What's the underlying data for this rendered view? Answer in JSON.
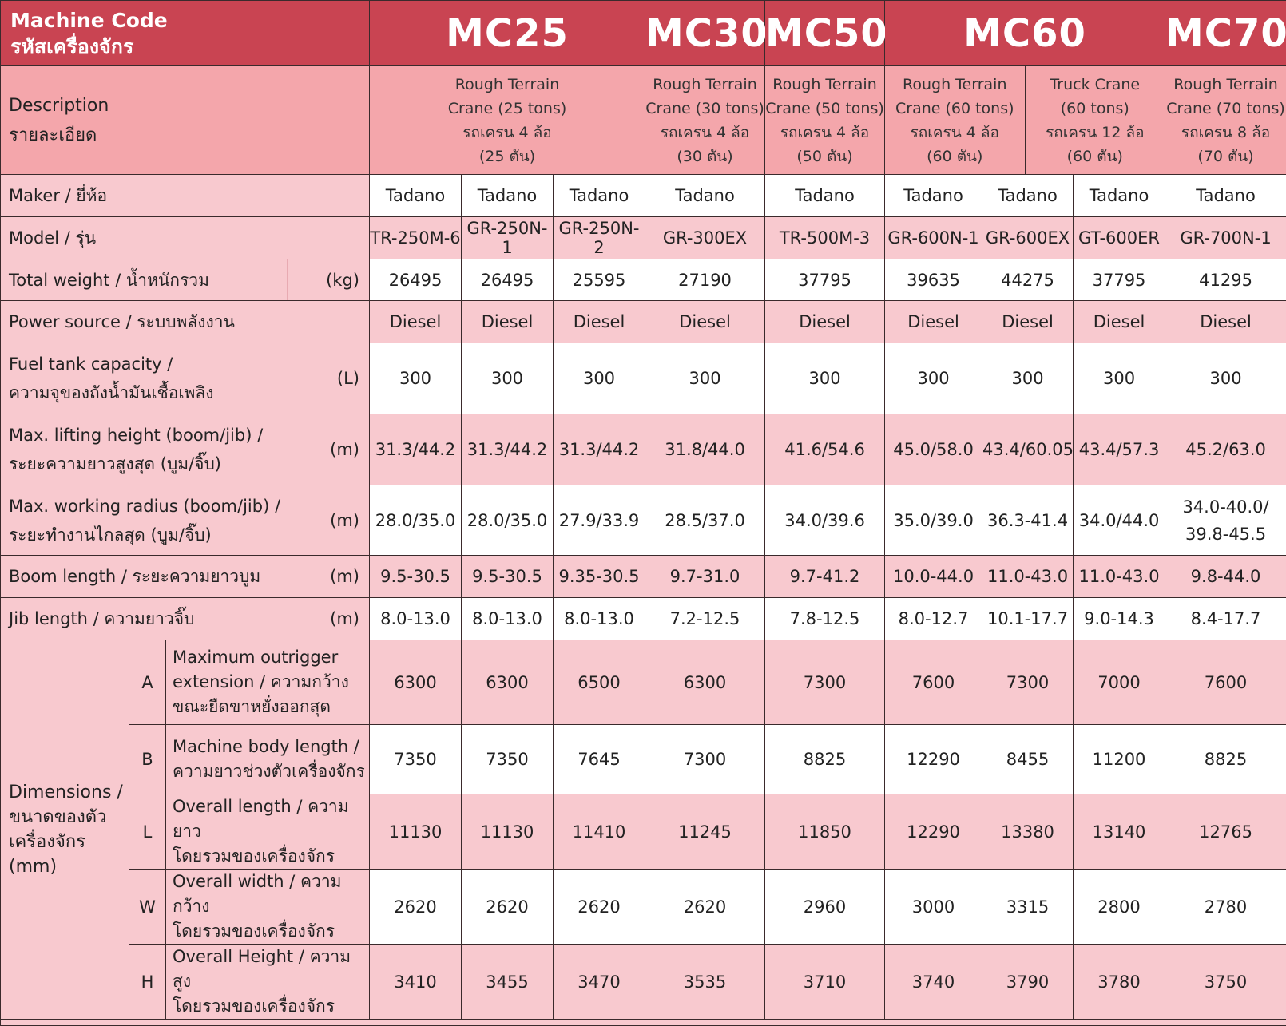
{
  "colors": {
    "header": "#c94452",
    "description": "#f4a6ab",
    "pink_row": "#f8c9cf",
    "white_row": "#ffffff"
  },
  "header": {
    "title_en": "Machine Code",
    "title_th": "รหัสเครื่องจักร",
    "codes": [
      {
        "code": "MC25",
        "span": 3
      },
      {
        "code": "MC30",
        "span": 1
      },
      {
        "code": "MC50",
        "span": 1
      },
      {
        "code": "MC60",
        "span": 3
      },
      {
        "code": "MC70",
        "span": 1
      }
    ]
  },
  "description": {
    "label_en": "Description",
    "label_th": "รายละเอียด",
    "items": [
      {
        "lines": [
          "Rough Terrain",
          "Crane (25 tons)",
          "รถเครน 4 ล้อ",
          "(25 ตัน)"
        ]
      },
      {
        "lines": [
          "Rough Terrain",
          "Crane (30 tons)",
          "รถเครน 4 ล้อ",
          "(30 ตัน)"
        ]
      },
      {
        "lines": [
          "Rough Terrain",
          "Crane (50 tons)",
          "รถเครน 4 ล้อ",
          "(50 ตัน)"
        ]
      },
      {
        "lines": [
          "Rough Terrain",
          "Crane (60 tons)",
          "รถเครน 4 ล้อ",
          "(60 ตัน)"
        ]
      },
      {
        "lines": [
          "Truck Crane",
          "(60 tons)",
          "รถเครน 12 ล้อ",
          "(60 ตัน)"
        ]
      },
      {
        "lines": [
          "Rough Terrain",
          "Crane (70 tons)",
          "รถเครน 8 ล้อ",
          "(70 ตัน)"
        ]
      }
    ]
  },
  "rows": [
    {
      "label": [
        "Maker / ยี่ห้อ"
      ],
      "unit": "",
      "shade": "white",
      "values": [
        "Tadano",
        "Tadano",
        "Tadano",
        "Tadano",
        "Tadano",
        "Tadano",
        "Tadano",
        "Tadano",
        "Tadano"
      ]
    },
    {
      "label": [
        "Model / รุ่น"
      ],
      "unit": "",
      "shade": "pink",
      "values": [
        "TR-250M-6",
        "GR-250N-1",
        "GR-250N-2",
        "GR-300EX",
        "TR-500M-3",
        "GR-600N-1",
        "GR-600EX",
        "GT-600ER",
        "GR-700N-1"
      ]
    },
    {
      "label": [
        "Total weight / น้ำหนักรวม"
      ],
      "unit": "(kg)",
      "shade": "white",
      "values": [
        "26495",
        "26495",
        "25595",
        "27190",
        "37795",
        "39635",
        "44275",
        "37795",
        "41295"
      ]
    },
    {
      "label": [
        "Power source / ระบบพลังงาน"
      ],
      "unit": "",
      "shade": "pink",
      "values": [
        "Diesel",
        "Diesel",
        "Diesel",
        "Diesel",
        "Diesel",
        "Diesel",
        "Diesel",
        "Diesel",
        "Diesel"
      ]
    },
    {
      "label": [
        "Fuel tank capacity /",
        "ความจุของถังน้ำมันเชื้อเพลิง"
      ],
      "unit": "(L)",
      "shade": "white",
      "values": [
        "300",
        "300",
        "300",
        "300",
        "300",
        "300",
        "300",
        "300",
        "300"
      ]
    },
    {
      "label": [
        "Max. lifting height (boom/jib) /",
        "ระยะความยาวสูงสุด (บูม/จิ๊บ)"
      ],
      "unit": "(m)",
      "shade": "pink",
      "values": [
        "31.3/44.2",
        "31.3/44.2",
        "31.3/44.2",
        "31.8/44.0",
        "41.6/54.6",
        "45.0/58.0",
        "43.4/60.05",
        "43.4/57.3",
        "45.2/63.0"
      ]
    },
    {
      "label": [
        "Max. working radius (boom/jib) /",
        "ระยะทำงานไกลสุด (บูม/จิ๊บ)"
      ],
      "unit": "(m)",
      "shade": "white",
      "values": [
        "28.0/35.0",
        "28.0/35.0",
        "27.9/33.9",
        "28.5/37.0",
        "34.0/39.6",
        "35.0/39.0",
        "36.3-41.4",
        "34.0/44.0",
        "34.0-40.0/ 39.8-45.5"
      ]
    },
    {
      "label": [
        "Boom length / ระยะความยาวบูม"
      ],
      "unit": "(m)",
      "shade": "pink",
      "values": [
        "9.5-30.5",
        "9.5-30.5",
        "9.35-30.5",
        "9.7-31.0",
        "9.7-41.2",
        "10.0-44.0",
        "11.0-43.0",
        "11.0-43.0",
        "9.8-44.0"
      ]
    },
    {
      "label": [
        "Jib length / ความยาวจิ๊บ"
      ],
      "unit": "(m)",
      "shade": "white",
      "values": [
        "8.0-13.0",
        "8.0-13.0",
        "8.0-13.0",
        "7.2-12.5",
        "7.8-12.5",
        "8.0-12.7",
        "10.1-17.7",
        "9.0-14.3",
        "8.4-17.7"
      ]
    }
  ],
  "dimensions": {
    "group_label": [
      "Dimensions /",
      "ขนาดของตัว",
      "เครื่องจักร",
      "(mm)"
    ],
    "rows": [
      {
        "letter": "A",
        "label": [
          "Maximum outrigger",
          "extension / ความกว้าง",
          "ขณะยืดขาหยั่งออกสุด"
        ],
        "shade": "pink",
        "values": [
          "6300",
          "6300",
          "6500",
          "6300",
          "7300",
          "7600",
          "7300",
          "7000",
          "7600"
        ]
      },
      {
        "letter": "B",
        "label": [
          "Machine body length /",
          "ความยาวช่วงตัวเครื่องจักร"
        ],
        "shade": "white",
        "values": [
          "7350",
          "7350",
          "7645",
          "7300",
          "8825",
          "12290",
          "8455",
          "11200",
          "8825"
        ]
      },
      {
        "letter": "L",
        "label": [
          "Overall length / ความยาว",
          "โดยรวมของเครื่องจักร"
        ],
        "shade": "pink",
        "values": [
          "11130",
          "11130",
          "11410",
          "11245",
          "11850",
          "12290",
          "13380",
          "13140",
          "12765"
        ]
      },
      {
        "letter": "W",
        "label": [
          "Overall width / ความกว้าง",
          "โดยรวมของเครื่องจักร"
        ],
        "shade": "white",
        "values": [
          "2620",
          "2620",
          "2620",
          "2620",
          "2960",
          "3000",
          "3315",
          "2800",
          "2780"
        ]
      },
      {
        "letter": "H",
        "label": [
          "Overall Height / ความสูง",
          "โดยรวมของเครื่องจักร"
        ],
        "shade": "pink",
        "values": [
          "3410",
          "3455",
          "3470",
          "3535",
          "3710",
          "3740",
          "3790",
          "3780",
          "3750"
        ]
      }
    ]
  }
}
